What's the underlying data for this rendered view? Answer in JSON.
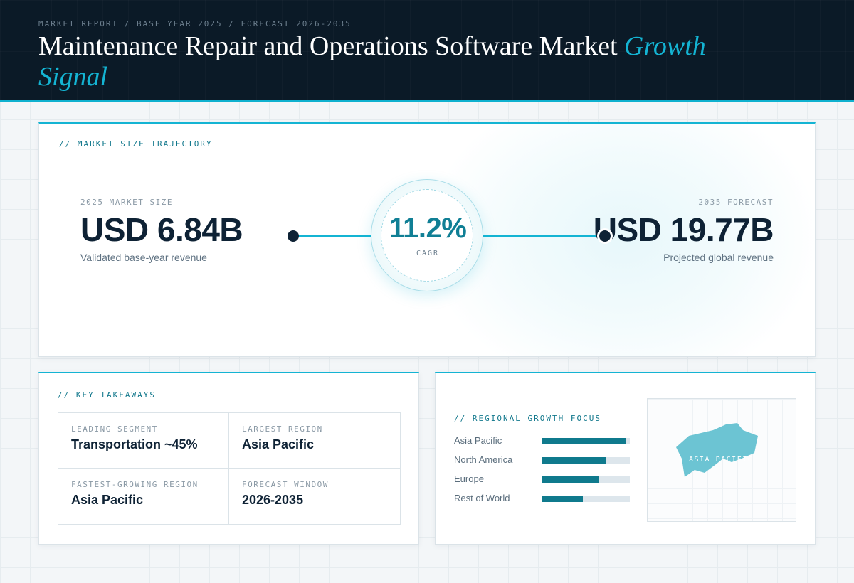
{
  "header": {
    "eyebrow": "MARKET REPORT / BASE YEAR 2025 / FORECAST 2026-2035",
    "title_main": "Maintenance Repair and Operations Software Market ",
    "title_accent": "Growth Signal"
  },
  "trajectory": {
    "label": "// MARKET SIZE TRAJECTORY",
    "start": {
      "label": "2025 MARKET SIZE",
      "value": "USD 6.84B",
      "sub": "Validated base-year revenue"
    },
    "end": {
      "label": "2035 FORECAST",
      "value": "USD 19.77B",
      "sub": "Projected global revenue"
    },
    "cagr": {
      "value": "11.2%",
      "label": "CAGR"
    }
  },
  "takeaways": {
    "label": "// KEY TAKEAWAYS",
    "items": [
      {
        "key": "LEADING SEGMENT",
        "value": "Transportation ~45%"
      },
      {
        "key": "LARGEST REGION",
        "value": "Asia Pacific"
      },
      {
        "key": "FASTEST-GROWING REGION",
        "value": "Asia Pacific"
      },
      {
        "key": "FORECAST WINDOW",
        "value": "2026-2035"
      }
    ]
  },
  "regional": {
    "label": "// REGIONAL GROWTH FOCUS",
    "regions": [
      {
        "name": "Asia Pacific",
        "level": 0.96
      },
      {
        "name": "North America",
        "level": 0.72
      },
      {
        "name": "Europe",
        "level": 0.64
      },
      {
        "name": "Rest of World",
        "level": 0.46
      }
    ],
    "map_label": "ASIA PACIFIC"
  },
  "colors": {
    "accent": "#14b4d3",
    "dark": "#0b1a27",
    "bar": "#0f7a8d",
    "map_shape": "#6cc4d3"
  }
}
